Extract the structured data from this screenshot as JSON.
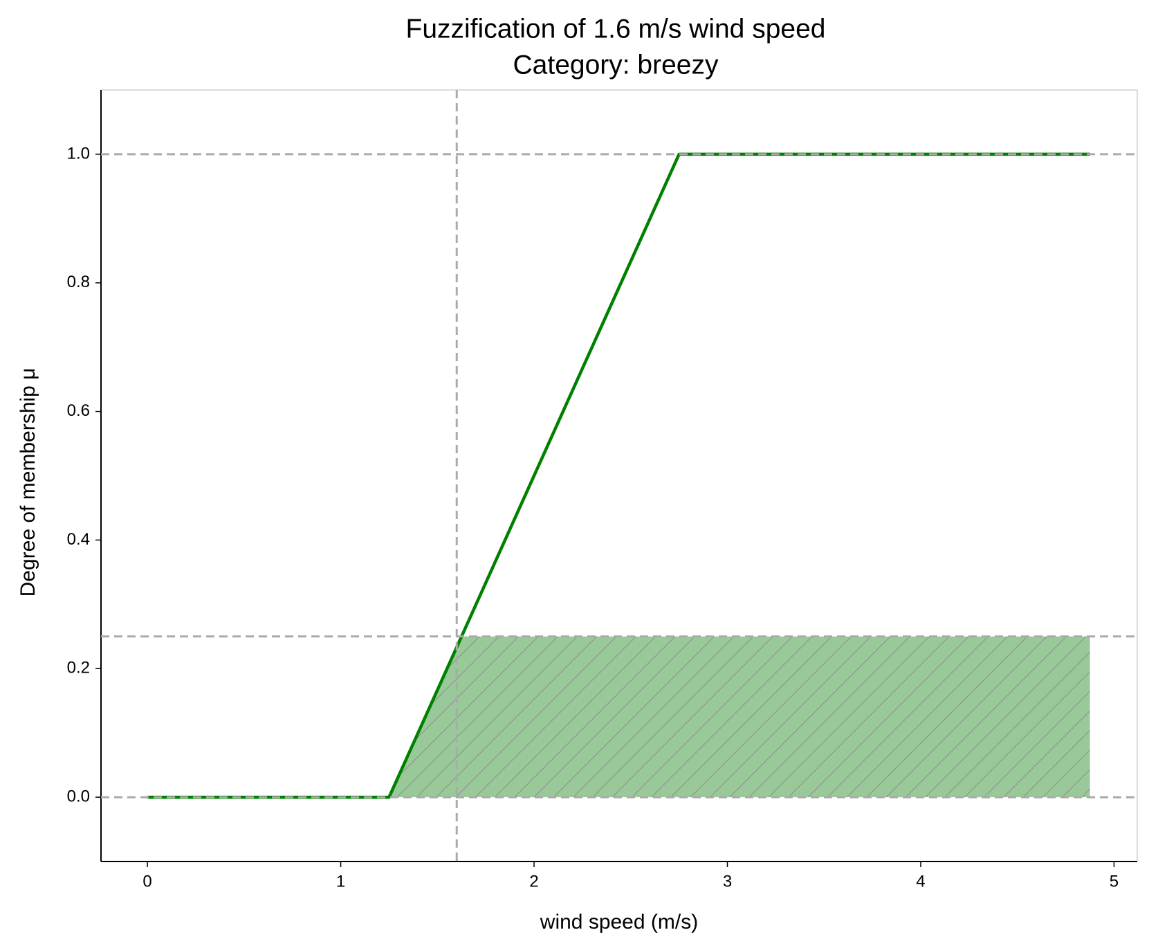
{
  "chart_data": {
    "type": "line",
    "title": "Fuzzification of 1.6 m/s wind speed",
    "subtitle": "Category: breezy",
    "xlabel": "wind speed (m/s)",
    "ylabel": "Degree of membership μ",
    "xlim": [
      -0.24,
      5.12
    ],
    "ylim": [
      -0.1,
      1.1
    ],
    "xticks": [
      0,
      1,
      2,
      3,
      4,
      5
    ],
    "yticks": [
      {
        "value": 0,
        "label": "0.0"
      },
      {
        "value": 0.2,
        "label": "0.2"
      },
      {
        "value": 0.4,
        "label": "0.4"
      },
      {
        "value": 0.6,
        "label": "0.6"
      },
      {
        "value": 0.8,
        "label": "0.8"
      },
      {
        "value": 1,
        "label": "1.0"
      }
    ],
    "series": [
      {
        "type": "area",
        "color": "#99c999",
        "x": [
          1.25,
          1.625,
          4.875
        ],
        "values": [
          0,
          0.25,
          0.25
        ]
      },
      {
        "type": "line",
        "color": "#008000",
        "x": [
          0,
          1.25,
          2.75,
          4.875
        ],
        "values": [
          0,
          0,
          1,
          1
        ]
      }
    ],
    "vlines": [
      1.6
    ],
    "hlines": [
      0,
      0.25,
      1
    ],
    "reference_color": "#aaaaaa"
  }
}
